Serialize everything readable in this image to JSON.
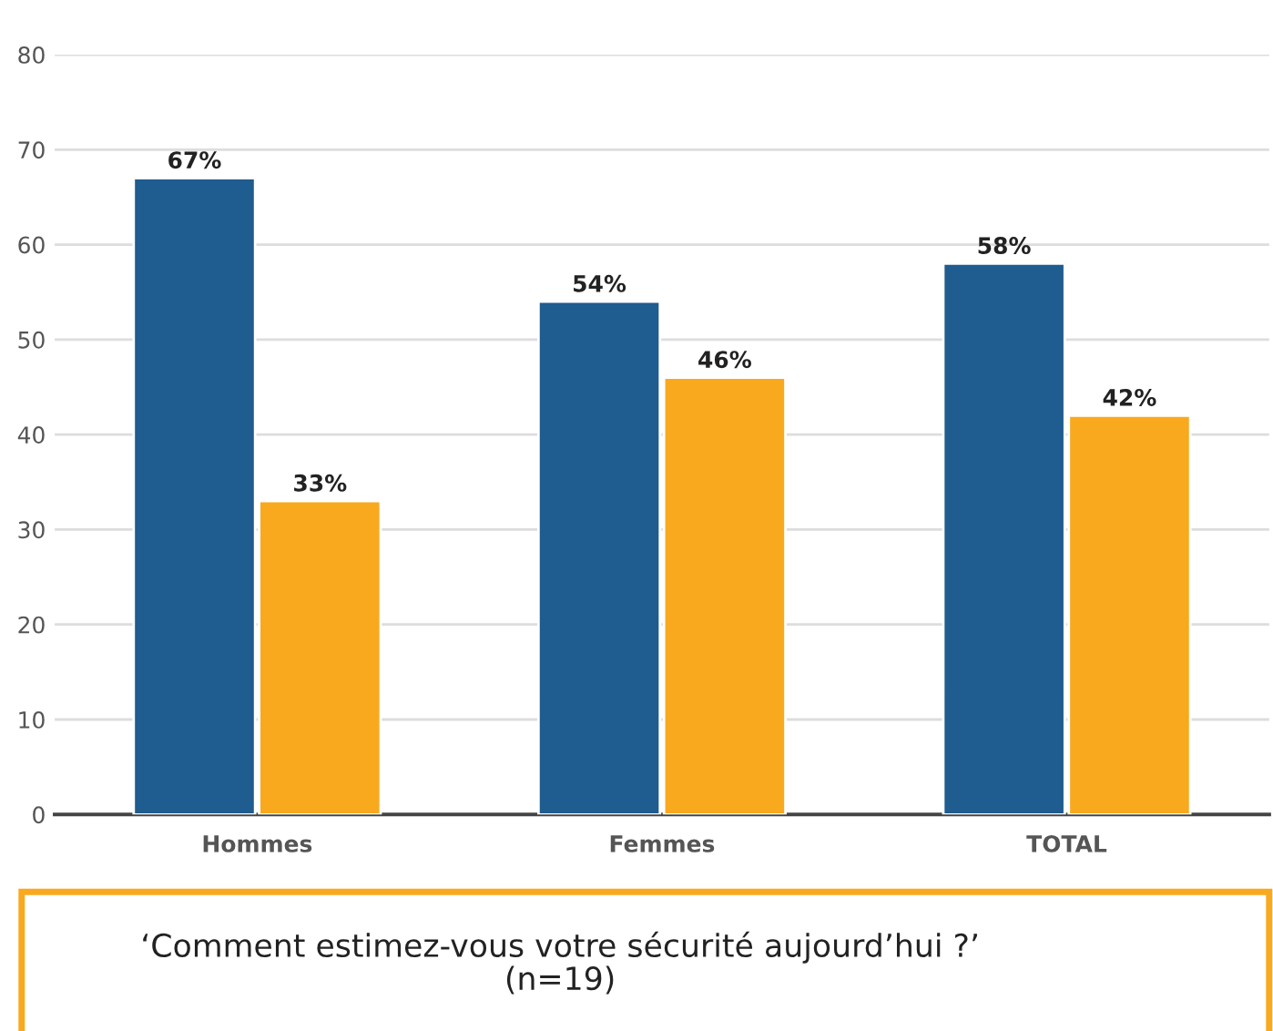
{
  "chart_data": {
    "type": "bar",
    "categories": [
      "Hommes",
      "Femmes",
      "TOTAL"
    ],
    "series": [
      {
        "color": "#1f5c8f",
        "values": [
          67,
          54,
          58
        ],
        "value_labels": [
          "67%",
          "54%",
          "58%"
        ]
      },
      {
        "color": "#f9a91e",
        "values": [
          33,
          46,
          42
        ],
        "value_labels": [
          "33%",
          "46%",
          "42%"
        ]
      }
    ],
    "ylim": [
      0,
      80
    ],
    "yticks": [
      0,
      10,
      20,
      30,
      40,
      50,
      60,
      70,
      80
    ],
    "grid": "y",
    "annotations": [
      "‘Comment estimez-vous votre sécurité aujourd’hui ?’\n(n=19)"
    ]
  }
}
